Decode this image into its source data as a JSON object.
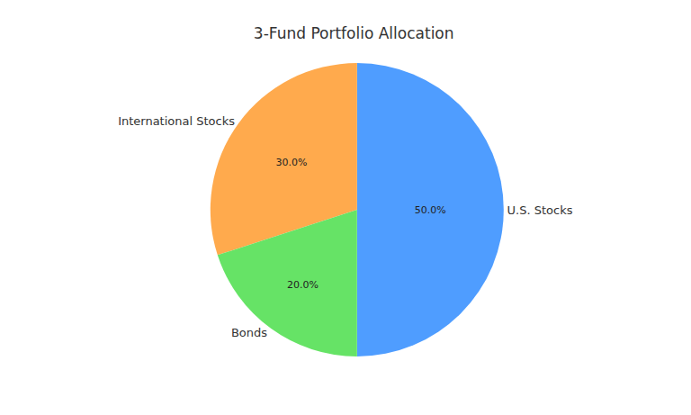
{
  "chart_data": {
    "type": "pie",
    "title": "3-Fund Portfolio Allocation",
    "categories": [
      "U.S. Stocks",
      "International Stocks",
      "Bonds"
    ],
    "values": [
      50,
      30,
      20
    ],
    "value_labels": [
      "50.0%",
      "30.0%",
      "20.0%"
    ],
    "colors": [
      "#4f9dff",
      "#ffaa4d",
      "#66e366"
    ],
    "data_labels": true
  }
}
